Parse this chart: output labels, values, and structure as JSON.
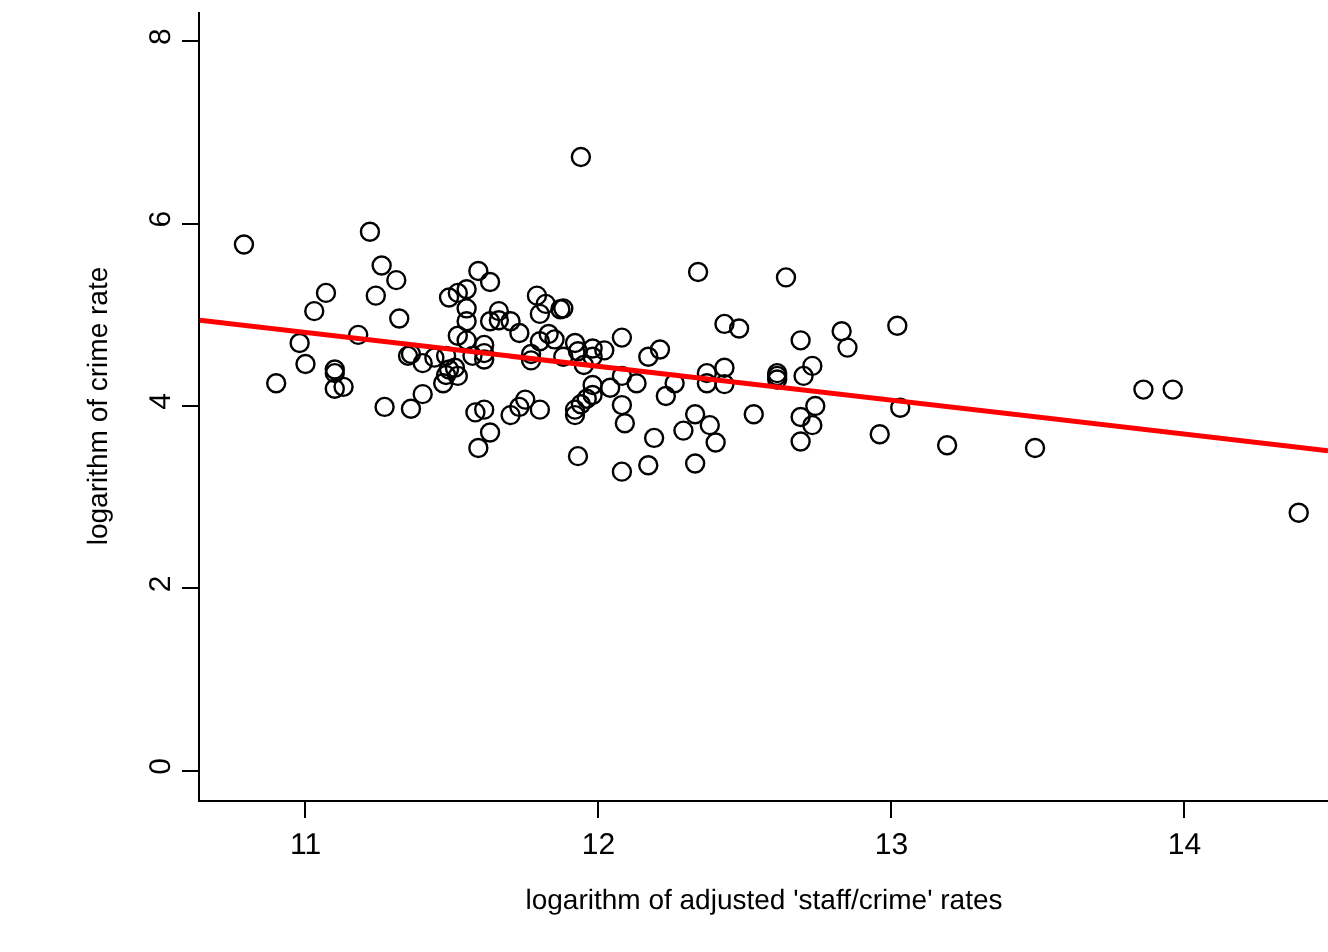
{
  "chart_data": {
    "type": "scatter",
    "xlabel": "logarithm of adjusted 'staff/crime' rates",
    "ylabel": "logarithm of crime rate",
    "xlim": [
      10.64,
      14.49
    ],
    "ylim": [
      -0.32,
      8.32
    ],
    "xticks": [
      11,
      12,
      13,
      14
    ],
    "yticks": [
      0,
      2,
      4,
      6,
      8
    ],
    "series": [
      {
        "color": "#000000",
        "marker": "circle",
        "x": [
          10.79,
          11.22,
          11.26,
          11.31,
          11.07,
          11.03,
          11.24,
          11.32,
          11.59,
          11.63,
          11.49,
          11.52,
          11.55,
          11.55,
          11.55,
          11.66,
          11.63,
          10.98,
          11.18,
          11.52,
          11.55,
          11.61,
          11.0,
          10.9,
          11.1,
          11.1,
          11.1,
          11.13,
          11.36,
          11.35,
          11.4,
          11.44,
          11.48,
          11.49,
          11.51,
          11.48,
          11.52,
          11.47,
          11.57,
          11.61,
          11.61,
          11.4,
          11.27,
          11.36,
          11.58,
          11.61,
          11.63,
          11.59,
          11.7,
          11.73,
          11.75,
          11.8,
          11.92,
          11.92,
          11.94,
          11.96,
          11.98,
          12.04,
          12.08,
          12.09,
          12.13,
          11.93,
          12.08,
          12.17,
          12.19,
          12.23,
          12.26,
          12.33,
          12.29,
          12.38,
          12.4,
          12.33,
          12.37,
          12.43,
          12.53,
          12.69,
          12.69,
          11.94,
          12.34,
          12.64,
          11.79,
          11.82,
          11.8,
          11.87,
          11.88,
          11.66,
          11.7,
          11.73,
          11.83,
          11.85,
          11.8,
          11.92,
          11.98,
          12.02,
          12.08,
          11.93,
          11.77,
          11.77,
          11.88,
          11.95,
          11.98,
          12.17,
          12.21,
          12.43,
          12.48,
          12.08,
          12.37,
          12.43,
          12.61,
          12.61,
          12.61,
          11.98,
          12.69,
          12.83,
          12.85,
          13.02,
          12.7,
          12.73,
          13.03,
          12.74,
          12.73,
          12.96,
          13.19,
          13.49,
          13.86,
          13.96,
          14.39
        ],
        "values": [
          5.77,
          5.91,
          5.54,
          5.38,
          5.24,
          5.04,
          5.21,
          4.96,
          5.48,
          5.36,
          5.19,
          5.24,
          5.28,
          5.07,
          4.93,
          5.04,
          4.93,
          4.69,
          4.78,
          4.77,
          4.72,
          4.67,
          4.46,
          4.25,
          4.4,
          4.36,
          4.19,
          4.21,
          4.57,
          4.55,
          4.47,
          4.53,
          4.55,
          4.4,
          4.42,
          4.34,
          4.33,
          4.25,
          4.55,
          4.58,
          4.51,
          4.13,
          3.99,
          3.97,
          3.93,
          3.96,
          3.71,
          3.54,
          3.9,
          3.99,
          4.07,
          3.96,
          3.96,
          3.9,
          4.02,
          4.08,
          4.23,
          4.2,
          4.01,
          3.81,
          4.25,
          3.45,
          3.28,
          3.35,
          3.65,
          4.11,
          4.25,
          3.91,
          3.73,
          3.79,
          3.6,
          3.37,
          4.25,
          4.24,
          3.91,
          3.88,
          3.61,
          6.73,
          5.47,
          5.41,
          5.21,
          5.12,
          5.01,
          5.06,
          5.07,
          4.94,
          4.93,
          4.8,
          4.79,
          4.73,
          4.71,
          4.69,
          4.63,
          4.61,
          4.75,
          4.6,
          4.57,
          4.5,
          4.54,
          4.45,
          4.54,
          4.54,
          4.62,
          4.9,
          4.85,
          4.33,
          4.36,
          4.42,
          4.36,
          4.33,
          4.29,
          4.12,
          4.72,
          4.82,
          4.64,
          4.88,
          4.33,
          4.44,
          3.98,
          4.0,
          3.79,
          3.69,
          3.57,
          3.54,
          4.18,
          4.18,
          2.83
        ]
      },
      {
        "type": "line",
        "color": "#ff0000",
        "x": [
          10.64,
          14.49
        ],
        "values": [
          4.94,
          3.51
        ]
      }
    ]
  }
}
